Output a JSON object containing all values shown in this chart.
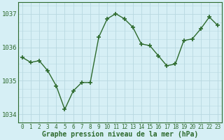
{
  "x": [
    0,
    1,
    2,
    3,
    4,
    5,
    6,
    7,
    8,
    9,
    10,
    11,
    12,
    13,
    14,
    15,
    16,
    17,
    18,
    19,
    20,
    21,
    22,
    23
  ],
  "y": [
    1035.7,
    1035.55,
    1035.6,
    1035.3,
    1034.85,
    1034.15,
    1034.7,
    1034.95,
    1034.95,
    1036.3,
    1036.85,
    1037.0,
    1036.85,
    1036.6,
    1036.1,
    1036.05,
    1035.75,
    1035.45,
    1035.5,
    1036.2,
    1036.25,
    1036.55,
    1036.9,
    1036.65
  ],
  "line_color": "#2d6a2d",
  "marker": "+",
  "marker_size": 4,
  "marker_lw": 1.2,
  "line_width": 1.0,
  "bg_color": "#d6eff5",
  "grid_color": "#b8d8e0",
  "xlabel": "Graphe pression niveau de la mer (hPa)",
  "xlabel_color": "#2d6a2d",
  "tick_color": "#2d6a2d",
  "axis_color": "#2d6a2d",
  "ylim": [
    1033.75,
    1037.35
  ],
  "yticks": [
    1034,
    1035,
    1036,
    1037
  ],
  "xlim": [
    -0.5,
    23.5
  ],
  "xticks": [
    0,
    1,
    2,
    3,
    4,
    5,
    6,
    7,
    8,
    9,
    10,
    11,
    12,
    13,
    14,
    15,
    16,
    17,
    18,
    19,
    20,
    21,
    22,
    23
  ],
  "tick_fontsize": 5.5,
  "ytick_fontsize": 6.5,
  "xlabel_fontsize": 7.0
}
